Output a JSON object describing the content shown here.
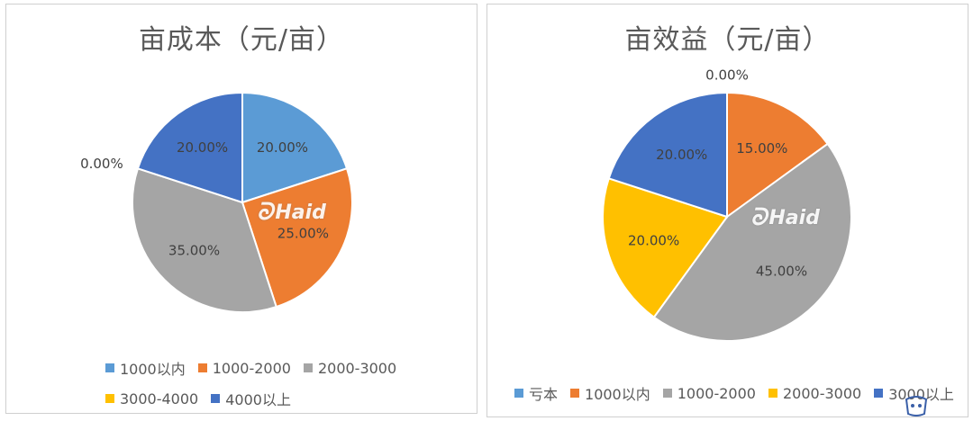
{
  "chart_data": [
    {
      "type": "pie",
      "title": "亩成本（元/亩）",
      "categories": [
        "1000以内",
        "1000-2000",
        "2000-3000",
        "3000-4000",
        "4000以上"
      ],
      "values": [
        20,
        25,
        35,
        0,
        20
      ],
      "labels": [
        "20.00%",
        "25.00%",
        "35.00%",
        "0.00%",
        "20.00%"
      ],
      "colors": [
        "#5B9BD5",
        "#ED7D31",
        "#A5A5A5",
        "#FFC000",
        "#4472C4"
      ],
      "legend": "bottom"
    },
    {
      "type": "pie",
      "title": "亩效益（元/亩）",
      "categories": [
        "亏本",
        "1000以内",
        "1000-2000",
        "2000-3000",
        "3000以上"
      ],
      "values": [
        0,
        15,
        45,
        20,
        20
      ],
      "labels": [
        "0.00%",
        "15.00%",
        "45.00%",
        "20.00%",
        "20.00%"
      ],
      "colors": [
        "#5B9BD5",
        "#ED7D31",
        "#A5A5A5",
        "#FFC000",
        "#4472C4"
      ],
      "legend": "bottom"
    }
  ],
  "watermark": {
    "text": "Haid"
  }
}
